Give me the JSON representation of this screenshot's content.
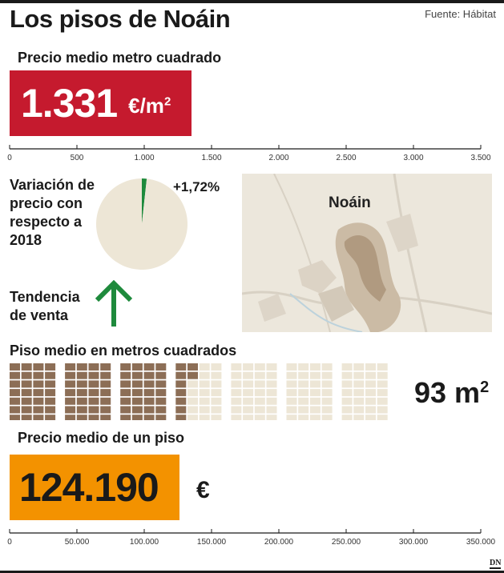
{
  "title": "Los pisos de Noáin",
  "source": "Fuente: Hábitat",
  "price_m2": {
    "label": "Precio medio metro cuadrado",
    "value_text": "1.331",
    "unit": "€/m",
    "unit_sup": "2"
  },
  "variation": {
    "label": "Variación de precio con respecto a 2018",
    "value_text": "+1,72%"
  },
  "trend": {
    "label": "Tendencia de venta",
    "direction": "up",
    "icon": "arrow-up-icon"
  },
  "map": {
    "label": "Noáin"
  },
  "size": {
    "label": "Piso medio en metros cuadrados",
    "value_text": "93 m",
    "value_sup": "2"
  },
  "price_flat": {
    "label": "Precio medio de un piso",
    "value_text": "124.190",
    "unit": "€"
  },
  "colors": {
    "red": "#c51a2e",
    "orange": "#f39200",
    "green": "#1e8a3c",
    "brown": "#8c6e56",
    "beige": "#ede6d6"
  },
  "brand": "DN",
  "chart_data": [
    {
      "type": "bar",
      "orientation": "horizontal",
      "categories": [
        "Precio medio metro cuadrado"
      ],
      "values": [
        1331
      ],
      "xlim": [
        0,
        3500
      ],
      "ticks": [
        0,
        500,
        1000,
        1500,
        2000,
        2500,
        3000,
        3500
      ],
      "tick_labels": [
        "0",
        "500",
        "1.000",
        "1.500",
        "2.000",
        "2.500",
        "3.000",
        "3.500"
      ]
    },
    {
      "type": "pie",
      "categories": [
        "Variación",
        "Resto"
      ],
      "values": [
        1.72,
        98.28
      ]
    },
    {
      "type": "waffle",
      "values": [
        93
      ],
      "total": 196,
      "grid": {
        "blocks": 7,
        "cols_per_block": 4,
        "rows_per_block": 7
      }
    },
    {
      "type": "bar",
      "orientation": "horizontal",
      "categories": [
        "Precio medio de un piso"
      ],
      "values": [
        124190
      ],
      "xlim": [
        0,
        350000
      ],
      "ticks": [
        0,
        50000,
        100000,
        150000,
        200000,
        250000,
        300000,
        350000
      ],
      "tick_labels": [
        "0",
        "50.000",
        "100.000",
        "150.000",
        "200.000",
        "250.000",
        "300.000",
        "350.000"
      ]
    }
  ]
}
